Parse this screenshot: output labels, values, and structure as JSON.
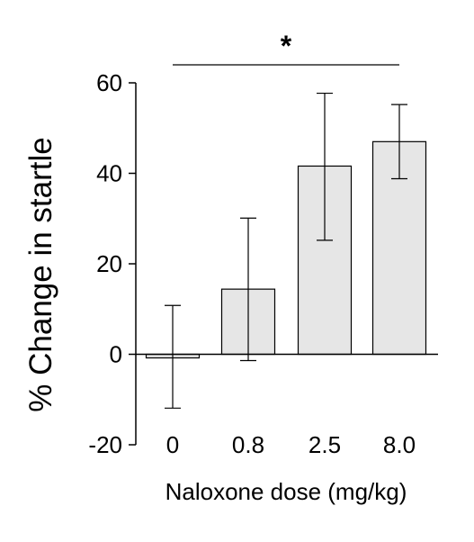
{
  "chart_data": {
    "type": "bar",
    "categories": [
      "0",
      "0.8",
      "2.5",
      "8.0"
    ],
    "values": [
      -0.8,
      14.4,
      41.6,
      47.0
    ],
    "error_high": [
      10.8,
      30.1,
      57.7,
      55.2
    ],
    "error_low": [
      -11.9,
      -1.4,
      25.2,
      38.8
    ],
    "xlabel": "Naloxone dose (mg/kg)",
    "ylabel": "% Change in startle",
    "ylim": [
      -20,
      60
    ],
    "yticks": [
      -20,
      0,
      20,
      40,
      60
    ],
    "grid": false,
    "bar_color": "#e6e6e6",
    "annotation": {
      "text": "*",
      "from_category": "0",
      "to_category": "8.0"
    }
  }
}
